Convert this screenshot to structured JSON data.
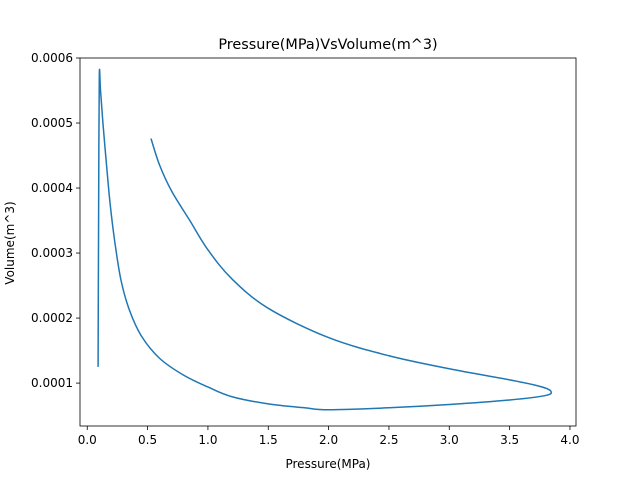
{
  "chart_data": {
    "type": "line",
    "title": "Pressure(MPa)VsVolume(m^3)",
    "xlabel": "Pressure(MPa)",
    "ylabel": "Volume(m^3)",
    "xlim": [
      -0.06,
      4.05
    ],
    "ylim": [
      3.4e-05,
      0.0006
    ],
    "grid": false,
    "xticks": [
      0.0,
      0.5,
      1.0,
      1.5,
      2.0,
      2.5,
      3.0,
      3.5,
      4.0
    ],
    "xtick_labels": [
      "0.0",
      "0.5",
      "1.0",
      "1.5",
      "2.0",
      "2.5",
      "3.0",
      "3.5",
      "4.0"
    ],
    "yticks": [
      0.0001,
      0.0002,
      0.0003,
      0.0004,
      0.0005,
      0.0006
    ],
    "ytick_labels": [
      "0.0001",
      "0.0002",
      "0.0003",
      "0.0004",
      "0.0005",
      "0.0006"
    ],
    "series": [
      {
        "color": "#1f77b4",
        "points": [
          [
            0.53,
            0.000475
          ],
          [
            0.6,
            0.000435
          ],
          [
            0.7,
            0.000395
          ],
          [
            0.85,
            0.00035
          ],
          [
            1.0,
            0.000305
          ],
          [
            1.2,
            0.00026
          ],
          [
            1.5,
            0.000215
          ],
          [
            2.0,
            0.00017
          ],
          [
            2.5,
            0.000142
          ],
          [
            3.0,
            0.000122
          ],
          [
            3.5,
            0.000105
          ],
          [
            3.75,
            9.5e-05
          ],
          [
            3.84,
            8.8e-05
          ],
          [
            3.8,
            8.1e-05
          ],
          [
            3.5,
            7.4e-05
          ],
          [
            3.0,
            6.7e-05
          ],
          [
            2.5,
            6.2e-05
          ],
          [
            2.0,
            5.9e-05
          ],
          [
            1.8,
            6.2e-05
          ],
          [
            1.5,
            6.8e-05
          ],
          [
            1.2,
            7.9e-05
          ],
          [
            1.0,
            9.4e-05
          ],
          [
            0.8,
            0.000112
          ],
          [
            0.6,
            0.000138
          ],
          [
            0.45,
            0.000172
          ],
          [
            0.35,
            0.000212
          ],
          [
            0.28,
            0.000258
          ],
          [
            0.23,
            0.000315
          ],
          [
            0.19,
            0.000375
          ],
          [
            0.16,
            0.000435
          ],
          [
            0.13,
            0.0005
          ],
          [
            0.11,
            0.00055
          ],
          [
            0.1,
            0.000574
          ],
          [
            0.095,
            0.0004
          ],
          [
            0.092,
            0.00025
          ],
          [
            0.09,
            0.000126
          ]
        ]
      }
    ]
  }
}
